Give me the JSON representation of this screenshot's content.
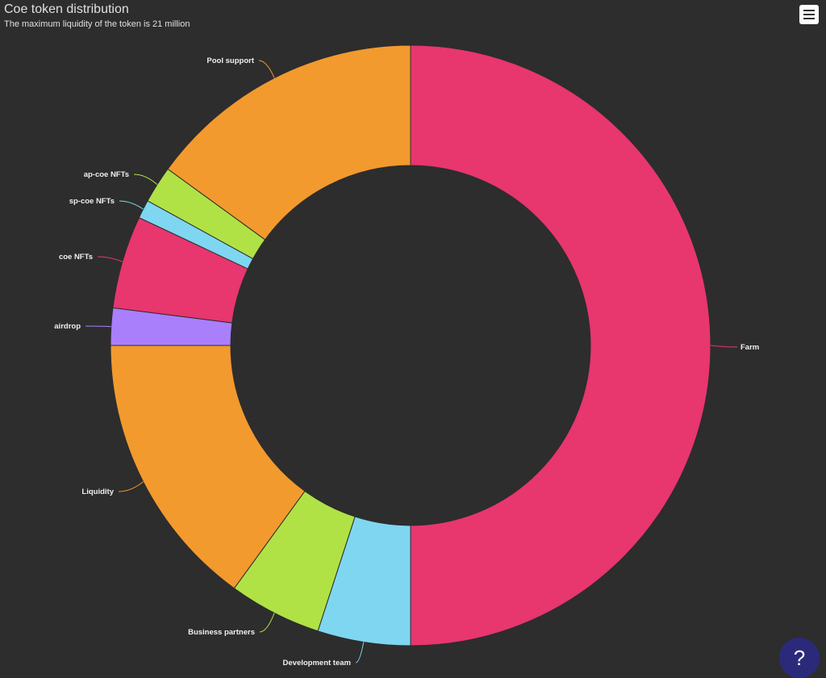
{
  "chart_data": {
    "type": "pie",
    "variant": "donut",
    "title": "Coe token distribution",
    "subtitle": "The maximum liquidity of the token is 21 million",
    "unit": "percent",
    "legend": "none",
    "slices": [
      {
        "name": "Farm",
        "value": 50,
        "color": "#e8366f"
      },
      {
        "name": "Development team",
        "value": 5,
        "color": "#7fd6f0"
      },
      {
        "name": "Business partners",
        "value": 5,
        "color": "#b0e245"
      },
      {
        "name": "Liquidity",
        "value": 15,
        "color": "#f29a2e"
      },
      {
        "name": "airdrop",
        "value": 2,
        "color": "#a97ffc"
      },
      {
        "name": "coe NFTs",
        "value": 5,
        "color": "#e8366f"
      },
      {
        "name": "sp-coe NFTs",
        "value": 1,
        "color": "#7fd6f0"
      },
      {
        "name": "ap-coe NFTs",
        "value": 2,
        "color": "#b0e245"
      },
      {
        "name": "Pool support",
        "value": 15,
        "color": "#f29a2e"
      }
    ]
  },
  "ui": {
    "menu_icon": "hamburger-menu-icon",
    "help_label": "?"
  }
}
